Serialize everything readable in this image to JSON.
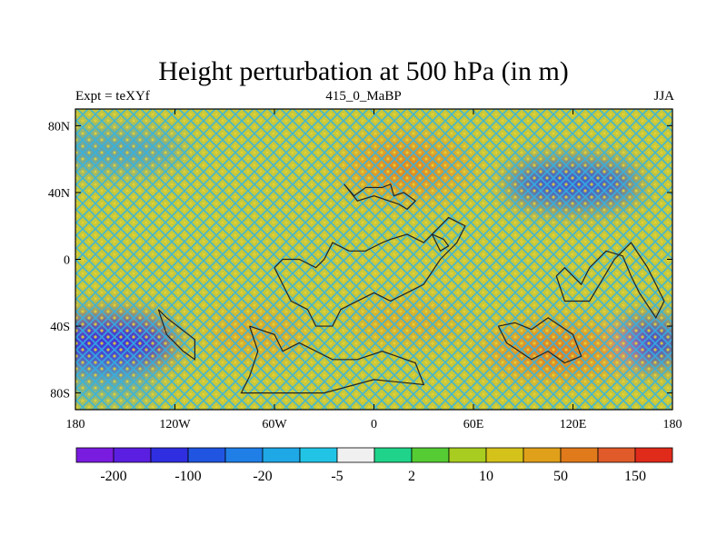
{
  "header": {
    "title": "Height perturbation at 500 hPa (in m)",
    "left_label": "Expt = teXYf",
    "center_label": "415_0_MaBP",
    "right_label": "JJA"
  },
  "axes": {
    "y_ticks": [
      "80N",
      "40N",
      "0",
      "40S",
      "80S"
    ],
    "x_ticks": [
      "180",
      "120W",
      "60W",
      "0",
      "60E",
      "120E",
      "180"
    ]
  },
  "colorbar": {
    "colors": [
      "#7a1be0",
      "#5a1fe0",
      "#2f2ee0",
      "#1f55e0",
      "#1f7fe6",
      "#1fa8e6",
      "#22c4e6",
      "#f0f0f0",
      "#1fd48a",
      "#55cc33",
      "#a8cc1f",
      "#d4c21a",
      "#e0a01a",
      "#e07a1a",
      "#e05a2a",
      "#e02a1a"
    ],
    "labels": [
      "-200",
      "-100",
      "-20",
      "-5",
      "2",
      "10",
      "50",
      "150"
    ]
  },
  "field": {
    "background_color": "#c8c83a",
    "blobs": [
      {
        "lon": 20,
        "lat": 55,
        "rx": 40,
        "ry": 20,
        "color": "#e0a02a",
        "opacity": 0.95
      },
      {
        "lon": 20,
        "lat": 55,
        "rx": 20,
        "ry": 10,
        "color": "#e07a22",
        "opacity": 0.8
      },
      {
        "lon": 120,
        "lat": 45,
        "rx": 40,
        "ry": 14,
        "color": "#2f52e0",
        "opacity": 0.9
      },
      {
        "lon": -160,
        "lat": 65,
        "rx": 45,
        "ry": 12,
        "color": "#2f8fe6",
        "opacity": 0.7
      },
      {
        "lon": -160,
        "lat": -50,
        "rx": 40,
        "ry": 16,
        "color": "#3a2ee0",
        "opacity": 0.95
      },
      {
        "lon": 165,
        "lat": -50,
        "rx": 22,
        "ry": 14,
        "color": "#2f3ee0",
        "opacity": 0.9
      },
      {
        "lon": -70,
        "lat": -45,
        "rx": 30,
        "ry": 14,
        "color": "#e0a02a",
        "opacity": 0.8
      },
      {
        "lon": 20,
        "lat": -38,
        "rx": 35,
        "ry": 12,
        "color": "#e0a02a",
        "opacity": 0.75
      },
      {
        "lon": 110,
        "lat": -55,
        "rx": 45,
        "ry": 18,
        "color": "#e09a2a",
        "opacity": 0.95
      },
      {
        "lon": 110,
        "lat": -55,
        "rx": 20,
        "ry": 9,
        "color": "#e07022",
        "opacity": 0.8
      },
      {
        "lon": -160,
        "lat": -75,
        "rx": 30,
        "ry": 10,
        "color": "#2f9fe6",
        "opacity": 0.6
      },
      {
        "lon": 20,
        "lat": -10,
        "rx": 50,
        "ry": 10,
        "color": "#d8c83a",
        "opacity": 0.5
      },
      {
        "lon": -120,
        "lat": 20,
        "rx": 40,
        "ry": 10,
        "color": "#c8d23a",
        "opacity": 0.4
      }
    ],
    "coastlines": [
      [
        [
          -18,
          45
        ],
        [
          -12,
          38
        ],
        [
          -5,
          43
        ],
        [
          5,
          43
        ],
        [
          10,
          45
        ],
        [
          12,
          38
        ],
        [
          18,
          40
        ],
        [
          25,
          35
        ],
        [
          20,
          30
        ],
        [
          15,
          33
        ],
        [
          0,
          38
        ],
        [
          -10,
          35
        ],
        [
          -18,
          45
        ]
      ],
      [
        [
          -60,
          -5
        ],
        [
          -55,
          0
        ],
        [
          -45,
          0
        ],
        [
          -35,
          -5
        ],
        [
          -30,
          0
        ],
        [
          -25,
          10
        ],
        [
          -15,
          5
        ],
        [
          -5,
          5
        ],
        [
          5,
          10
        ],
        [
          10,
          12
        ],
        [
          20,
          15
        ],
        [
          30,
          10
        ],
        [
          35,
          15
        ],
        [
          45,
          25
        ],
        [
          55,
          20
        ],
        [
          50,
          10
        ],
        [
          40,
          0
        ],
        [
          30,
          -15
        ],
        [
          20,
          -20
        ],
        [
          10,
          -25
        ],
        [
          0,
          -20
        ],
        [
          -10,
          -25
        ],
        [
          -20,
          -30
        ],
        [
          -25,
          -40
        ],
        [
          -35,
          -40
        ],
        [
          -40,
          -30
        ],
        [
          -50,
          -25
        ],
        [
          -60,
          -5
        ]
      ],
      [
        [
          -130,
          -30
        ],
        [
          -125,
          -45
        ],
        [
          -115,
          -55
        ],
        [
          -108,
          -60
        ],
        [
          -108,
          -48
        ],
        [
          -125,
          -35
        ],
        [
          -130,
          -30
        ]
      ],
      [
        [
          -75,
          -40
        ],
        [
          -70,
          -55
        ],
        [
          -75,
          -70
        ],
        [
          -80,
          -80
        ],
        [
          -30,
          -80
        ],
        [
          0,
          -72
        ],
        [
          30,
          -75
        ],
        [
          25,
          -62
        ],
        [
          5,
          -55
        ],
        [
          -10,
          -60
        ],
        [
          -25,
          -60
        ],
        [
          -45,
          -50
        ],
        [
          -55,
          -55
        ],
        [
          -60,
          -45
        ],
        [
          -75,
          -40
        ]
      ],
      [
        [
          75,
          -40
        ],
        [
          80,
          -50
        ],
        [
          95,
          -60
        ],
        [
          105,
          -55
        ],
        [
          115,
          -62
        ],
        [
          125,
          -58
        ],
        [
          120,
          -45
        ],
        [
          105,
          -35
        ],
        [
          95,
          -42
        ],
        [
          85,
          -38
        ],
        [
          75,
          -40
        ]
      ],
      [
        [
          110,
          -10
        ],
        [
          115,
          -5
        ],
        [
          125,
          -15
        ],
        [
          130,
          -5
        ],
        [
          140,
          5
        ],
        [
          150,
          2
        ],
        [
          155,
          -10
        ],
        [
          160,
          -20
        ],
        [
          170,
          -35
        ],
        [
          175,
          -25
        ],
        [
          165,
          -5
        ],
        [
          155,
          10
        ],
        [
          145,
          0
        ],
        [
          130,
          -25
        ],
        [
          115,
          -25
        ],
        [
          110,
          -10
        ]
      ],
      [
        [
          35,
          15
        ],
        [
          42,
          12
        ],
        [
          45,
          8
        ],
        [
          40,
          5
        ],
        [
          35,
          15
        ]
      ]
    ]
  }
}
